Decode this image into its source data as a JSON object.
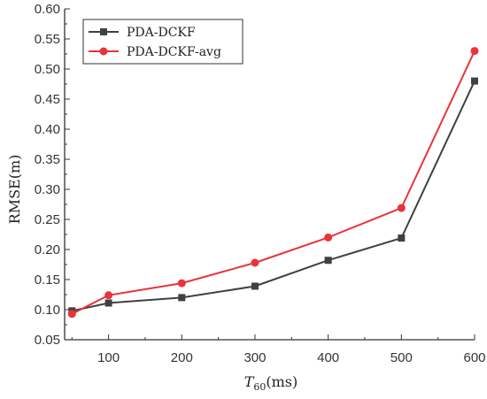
{
  "chart_data": {
    "type": "line",
    "x": [
      50,
      100,
      200,
      300,
      400,
      500,
      600
    ],
    "series": [
      {
        "name": "PDA-DCKF",
        "color": "#404040",
        "marker": "square",
        "values": [
          0.098,
          0.111,
          0.12,
          0.139,
          0.182,
          0.219,
          0.48
        ]
      },
      {
        "name": "PDA-DCKF-avg",
        "color": "#e8343a",
        "marker": "circle",
        "values": [
          0.093,
          0.124,
          0.144,
          0.178,
          0.22,
          0.269,
          0.53
        ]
      }
    ],
    "xlabel": {
      "italic": "T",
      "sub": "60",
      "unit": "(ms)"
    },
    "ylabel": "RMSE(m)",
    "xlim": [
      40,
      600
    ],
    "ylim": [
      0.05,
      0.6
    ],
    "xticks": [
      "100",
      "200",
      "300",
      "400",
      "500",
      "600"
    ],
    "xtick_values": [
      100,
      200,
      300,
      400,
      500,
      600
    ],
    "yticks": [
      "0.05",
      "0.10",
      "0.15",
      "0.20",
      "0.25",
      "0.30",
      "0.35",
      "0.40",
      "0.45",
      "0.50",
      "0.55",
      "0.60"
    ],
    "ytick_values": [
      0.05,
      0.1,
      0.15,
      0.2,
      0.25,
      0.3,
      0.35,
      0.4,
      0.45,
      0.5,
      0.55,
      0.6
    ],
    "legend": "top-left",
    "grid": false
  }
}
